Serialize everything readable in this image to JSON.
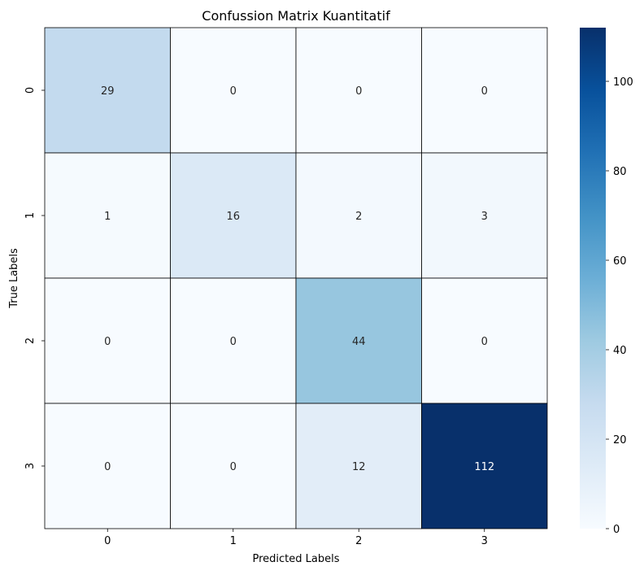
{
  "chart_data": {
    "type": "heatmap",
    "title": "Confussion Matrix Kuantitatif",
    "xlabel": "Predicted Labels",
    "ylabel": "True Labels",
    "x_categories": [
      "0",
      "1",
      "2",
      "3"
    ],
    "y_categories": [
      "0",
      "1",
      "2",
      "3"
    ],
    "values": [
      [
        29,
        0,
        0,
        0
      ],
      [
        1,
        16,
        2,
        3
      ],
      [
        0,
        0,
        44,
        0
      ],
      [
        0,
        0,
        12,
        112
      ]
    ],
    "colormap": "Blues",
    "colorbar": {
      "vmin": 0,
      "vmax": 112,
      "ticks": [
        0,
        20,
        40,
        60,
        80,
        100
      ]
    },
    "grid": true
  }
}
